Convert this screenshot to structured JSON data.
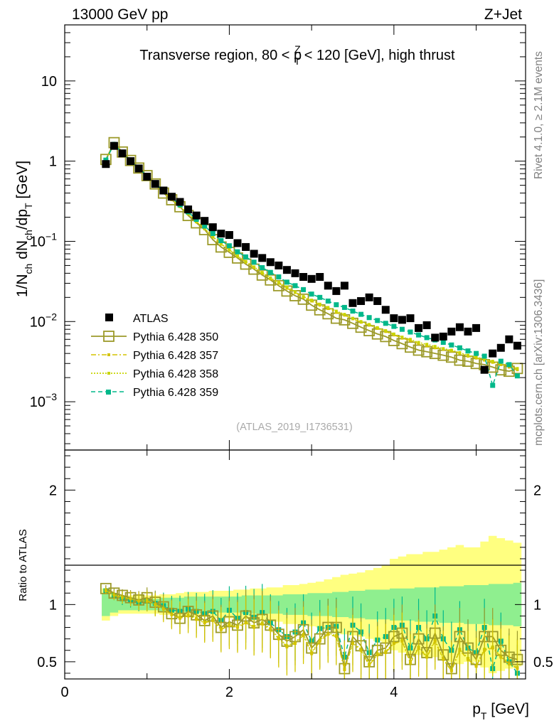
{
  "header": {
    "energy": "13000 GeV pp",
    "process": "Z+Jet"
  },
  "side_labels": {
    "rivet": "Rivet 4.1.0, ≥ 2.1M events",
    "url": "mcplots.cern.ch [arXiv:1306.3436]"
  },
  "watermark": "(ATLAS_2019_I1736531)",
  "colors": {
    "atlas": "#000000",
    "p350": "#9c9a2a",
    "p357": "#d4c300",
    "p358": "#c8d400",
    "p359": "#00b88a",
    "band_yellow": "#ffff80",
    "band_green": "#8fef8f"
  },
  "chart_data": [
    {
      "type": "scatter",
      "title": "Transverse region, 80 < p_T^Z < 120 [GeV], high thrust",
      "title_parts": {
        "pre": "Transverse region, 80 < p",
        "sup": "Z",
        "sub": "T",
        "post": " < 120 [GeV], high thrust"
      },
      "ylabel_parts": {
        "a": "1/N",
        "a_sub": "ch",
        "b": " dN",
        "b_sub": "ch",
        "c": "/dp",
        "c_sub": "T",
        "d": " [GeV]"
      },
      "yscale": "log",
      "xlim": [
        0,
        5.6
      ],
      "ylim": [
        0.00025,
        50
      ],
      "yticks": [
        {
          "value": 10,
          "base": "10",
          "exp": ""
        },
        {
          "value": 1,
          "base": "1",
          "exp": ""
        },
        {
          "value": 0.1,
          "base": "10",
          "exp": "−1"
        },
        {
          "value": 0.01,
          "base": "10",
          "exp": "−2"
        },
        {
          "value": 0.001,
          "base": "10",
          "exp": "−3"
        }
      ],
      "x": [
        0.5,
        0.6,
        0.7,
        0.8,
        0.9,
        1.0,
        1.1,
        1.2,
        1.3,
        1.4,
        1.5,
        1.6,
        1.7,
        1.8,
        1.9,
        2.0,
        2.1,
        2.2,
        2.3,
        2.4,
        2.5,
        2.6,
        2.7,
        2.8,
        2.9,
        3.0,
        3.1,
        3.2,
        3.3,
        3.4,
        3.5,
        3.6,
        3.7,
        3.8,
        3.9,
        4.0,
        4.1,
        4.2,
        4.3,
        4.4,
        4.5,
        4.6,
        4.7,
        4.8,
        4.9,
        5.0,
        5.1,
        5.2,
        5.3,
        5.4,
        5.5
      ],
      "series": [
        {
          "name": "ATLAS",
          "style": "square",
          "color": "#000000",
          "values": [
            0.92,
            1.55,
            1.25,
            1.0,
            0.81,
            0.64,
            0.52,
            0.43,
            0.36,
            0.31,
            0.25,
            0.21,
            0.18,
            0.15,
            0.125,
            0.12,
            0.095,
            0.085,
            0.07,
            0.062,
            0.055,
            0.05,
            0.044,
            0.04,
            0.036,
            0.034,
            0.036,
            0.028,
            0.024,
            0.028,
            0.017,
            0.018,
            0.02,
            0.018,
            0.014,
            0.011,
            0.0105,
            0.011,
            0.0083,
            0.009,
            0.0063,
            0.0065,
            0.0075,
            0.0085,
            0.0075,
            0.0083,
            0.0025,
            0.004,
            0.0047,
            0.006,
            0.005
          ]
        },
        {
          "name": "Pythia 6.428 350",
          "style": "open-square",
          "color": "#9c9a2a",
          "values": [
            1.05,
            1.7,
            1.3,
            1.02,
            0.82,
            0.66,
            0.52,
            0.4,
            0.33,
            0.27,
            0.21,
            0.17,
            0.14,
            0.105,
            0.085,
            0.073,
            0.062,
            0.052,
            0.045,
            0.038,
            0.033,
            0.028,
            0.024,
            0.021,
            0.019,
            0.016,
            0.014,
            0.0125,
            0.011,
            0.0105,
            0.0095,
            0.0085,
            0.0077,
            0.007,
            0.0065,
            0.0058,
            0.0053,
            0.0048,
            0.0044,
            0.0042,
            0.004,
            0.0038,
            0.0036,
            0.0033,
            0.0032,
            0.003,
            0.0029,
            0.0027,
            0.0025,
            0.0024,
            0.0026
          ]
        },
        {
          "name": "Pythia 6.428 357",
          "style": "dash-dot",
          "color": "#d4c300",
          "values": [
            1.02,
            1.65,
            1.28,
            1.0,
            0.8,
            0.65,
            0.51,
            0.41,
            0.33,
            0.27,
            0.22,
            0.175,
            0.143,
            0.113,
            0.092,
            0.078,
            0.065,
            0.055,
            0.047,
            0.04,
            0.034,
            0.03,
            0.026,
            0.023,
            0.02,
            0.018,
            0.016,
            0.0145,
            0.013,
            0.012,
            0.0108,
            0.0098,
            0.009,
            0.0082,
            0.0075,
            0.0068,
            0.0062,
            0.0058,
            0.0053,
            0.005,
            0.0047,
            0.0045,
            0.0043,
            0.004,
            0.0037,
            0.0035,
            0.0033,
            0.0031,
            0.0029,
            0.0027,
            0.0025
          ]
        },
        {
          "name": "Pythia 6.428 358",
          "style": "dotted",
          "color": "#c8d400",
          "values": [
            1.03,
            1.66,
            1.29,
            1.01,
            0.81,
            0.655,
            0.515,
            0.41,
            0.335,
            0.272,
            0.222,
            0.177,
            0.145,
            0.115,
            0.093,
            0.079,
            0.066,
            0.056,
            0.048,
            0.041,
            0.035,
            0.031,
            0.027,
            0.0235,
            0.0205,
            0.0185,
            0.0165,
            0.015,
            0.0135,
            0.0123,
            0.011,
            0.01,
            0.0092,
            0.0084,
            0.0077,
            0.007,
            0.0064,
            0.006,
            0.0055,
            0.0052,
            0.0049,
            0.0046,
            0.0044,
            0.0041,
            0.0038,
            0.0036,
            0.0034,
            0.0032,
            0.003,
            0.0028,
            0.0026
          ]
        },
        {
          "name": "Pythia 6.428 359",
          "style": "dashed-square",
          "color": "#00b88a",
          "values": [
            1.03,
            1.62,
            1.27,
            1.0,
            0.81,
            0.66,
            0.53,
            0.42,
            0.35,
            0.285,
            0.233,
            0.188,
            0.155,
            0.125,
            0.102,
            0.088,
            0.074,
            0.064,
            0.055,
            0.047,
            0.041,
            0.036,
            0.031,
            0.028,
            0.025,
            0.022,
            0.02,
            0.018,
            0.0162,
            0.015,
            0.0135,
            0.0123,
            0.0112,
            0.0103,
            0.0095,
            0.0087,
            0.008,
            0.0074,
            0.0068,
            0.0063,
            0.0059,
            0.0055,
            0.0051,
            0.0047,
            0.0043,
            0.004,
            0.0037,
            0.0016,
            0.0032,
            0.0029,
            0.0021
          ]
        }
      ]
    },
    {
      "type": "line",
      "ylabel": "Ratio to ATLAS",
      "xlabel_parts": {
        "a": "p",
        "sub": "T",
        "b": " [GeV]"
      },
      "xlim": [
        0,
        5.6
      ],
      "ylim": [
        0.35,
        2.35
      ],
      "xticks": [
        "0",
        "2",
        "4"
      ],
      "yticks": [
        "0.5",
        "1",
        "2"
      ],
      "x": [
        0.5,
        0.6,
        0.7,
        0.8,
        0.9,
        1.0,
        1.1,
        1.2,
        1.3,
        1.4,
        1.5,
        1.6,
        1.7,
        1.8,
        1.9,
        2.0,
        2.1,
        2.2,
        2.3,
        2.4,
        2.5,
        2.6,
        2.7,
        2.8,
        2.9,
        3.0,
        3.1,
        3.2,
        3.3,
        3.4,
        3.5,
        3.6,
        3.7,
        3.8,
        3.9,
        4.0,
        4.1,
        4.2,
        4.3,
        4.4,
        4.5,
        4.6,
        4.7,
        4.8,
        4.9,
        5.0,
        5.1,
        5.2,
        5.3,
        5.4,
        5.5
      ],
      "band_green": [
        0.1,
        0.07,
        0.05,
        0.05,
        0.05,
        0.05,
        0.05,
        0.06,
        0.06,
        0.06,
        0.07,
        0.07,
        0.07,
        0.07,
        0.07,
        0.07,
        0.07,
        0.08,
        0.08,
        0.08,
        0.08,
        0.08,
        0.09,
        0.09,
        0.09,
        0.1,
        0.1,
        0.1,
        0.11,
        0.11,
        0.12,
        0.12,
        0.13,
        0.13,
        0.13,
        0.14,
        0.14,
        0.14,
        0.15,
        0.15,
        0.15,
        0.16,
        0.16,
        0.16,
        0.17,
        0.17,
        0.17,
        0.18,
        0.18,
        0.18,
        0.19
      ],
      "band_yellow": [
        0.14,
        0.1,
        0.08,
        0.08,
        0.08,
        0.08,
        0.08,
        0.09,
        0.09,
        0.1,
        0.11,
        0.11,
        0.11,
        0.12,
        0.12,
        0.12,
        0.13,
        0.13,
        0.14,
        0.14,
        0.15,
        0.15,
        0.17,
        0.17,
        0.18,
        0.19,
        0.2,
        0.22,
        0.24,
        0.26,
        0.27,
        0.28,
        0.3,
        0.32,
        0.34,
        0.4,
        0.42,
        0.44,
        0.44,
        0.46,
        0.46,
        0.48,
        0.5,
        0.52,
        0.5,
        0.5,
        0.55,
        0.6,
        0.58,
        0.56,
        0.54
      ],
      "series": [
        {
          "name": "Pythia 6.428 350",
          "style": "open-square",
          "color": "#9c9a2a",
          "values": [
            1.14,
            1.1,
            1.08,
            1.06,
            1.04,
            1.06,
            1.02,
            0.98,
            0.92,
            0.88,
            0.94,
            0.91,
            0.86,
            0.9,
            0.8,
            0.85,
            0.82,
            0.9,
            0.84,
            0.87,
            0.82,
            0.74,
            0.68,
            0.72,
            0.78,
            0.62,
            0.7,
            0.8,
            0.8,
            0.44,
            0.72,
            0.64,
            0.5,
            0.6,
            0.62,
            0.72,
            0.75,
            0.52,
            0.7,
            0.58,
            0.75,
            0.56,
            0.44,
            0.72,
            0.62,
            0.52,
            0.72,
            0.72,
            0.6,
            0.54,
            0.52
          ]
        },
        {
          "name": "Pythia 6.428 357",
          "style": "dash-dot",
          "color": "#d4c300",
          "values": [
            1.12,
            1.08,
            1.06,
            1.05,
            1.03,
            1.03,
            1.0,
            0.96,
            0.91,
            0.88,
            0.9,
            0.87,
            0.84,
            0.86,
            0.78,
            0.82,
            0.8,
            0.84,
            0.8,
            0.83,
            0.78,
            0.7,
            0.63,
            0.66,
            0.73,
            0.57,
            0.68,
            0.74,
            0.72,
            0.43,
            0.66,
            0.6,
            0.47,
            0.56,
            0.58,
            0.66,
            0.68,
            0.49,
            0.62,
            0.54,
            0.68,
            0.52,
            0.42,
            0.6,
            0.52,
            0.46,
            0.6,
            0.62,
            0.54,
            0.48,
            0.44
          ]
        },
        {
          "name": "Pythia 6.428 358",
          "style": "dotted",
          "color": "#c8d400",
          "values": [
            1.13,
            1.09,
            1.07,
            1.05,
            1.03,
            1.04,
            1.0,
            0.97,
            0.92,
            0.89,
            0.91,
            0.88,
            0.85,
            0.87,
            0.79,
            0.83,
            0.81,
            0.85,
            0.81,
            0.84,
            0.79,
            0.71,
            0.64,
            0.67,
            0.74,
            0.58,
            0.69,
            0.75,
            0.73,
            0.44,
            0.67,
            0.61,
            0.48,
            0.57,
            0.59,
            0.67,
            0.69,
            0.5,
            0.63,
            0.55,
            0.69,
            0.53,
            0.43,
            0.61,
            0.53,
            0.47,
            0.61,
            0.63,
            0.55,
            0.49,
            0.45
          ]
        },
        {
          "name": "Pythia 6.428 359",
          "style": "dashed-square",
          "color": "#00b88a",
          "values": [
            1.12,
            1.08,
            1.05,
            1.04,
            1.02,
            1.03,
            1.01,
            0.99,
            0.95,
            0.94,
            0.96,
            0.94,
            0.92,
            0.94,
            0.86,
            0.95,
            0.88,
            0.93,
            0.89,
            0.93,
            0.84,
            0.78,
            0.72,
            0.76,
            0.84,
            0.68,
            0.79,
            0.8,
            0.81,
            0.54,
            0.82,
            0.76,
            0.58,
            0.69,
            0.72,
            0.8,
            0.82,
            0.62,
            0.8,
            0.7,
            0.9,
            0.7,
            0.6,
            0.78,
            0.62,
            0.58,
            0.8,
            0.44,
            0.68,
            0.5,
            0.4
          ]
        }
      ]
    }
  ]
}
